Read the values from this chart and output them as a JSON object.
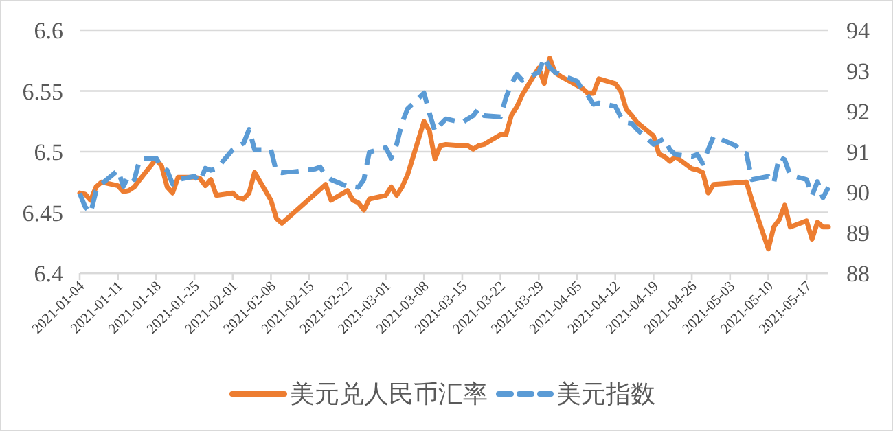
{
  "chart_data": {
    "type": "line",
    "xlim": [
      "2021-01-04",
      "2021-05-21"
    ],
    "xticks": [
      "2021-01-04",
      "2021-01-11",
      "2021-01-18",
      "2021-01-25",
      "2021-02-01",
      "2021-02-08",
      "2021-02-15",
      "2021-02-22",
      "2021-03-01",
      "2021-03-08",
      "2021-03-15",
      "2021-03-22",
      "2021-03-29",
      "2021-04-05",
      "2021-04-12",
      "2021-04-19",
      "2021-04-26",
      "2021-05-03",
      "2021-05-10",
      "2021-05-17"
    ],
    "ylim": [
      6.4,
      6.6
    ],
    "yticks": [
      6.4,
      6.45,
      6.5,
      6.55,
      6.6
    ],
    "y2lim": [
      88,
      94
    ],
    "y2ticks": [
      88,
      89,
      90,
      91,
      92,
      93,
      94
    ],
    "grid": "y",
    "legend": "bottom",
    "series": [
      {
        "name": "美元兑人民币汇率",
        "color": "#ed7d31",
        "line_style": "solid",
        "x": [
          "2021-01-04",
          "2021-01-05",
          "2021-01-06",
          "2021-01-07",
          "2021-01-08",
          "2021-01-11",
          "2021-01-12",
          "2021-01-13",
          "2021-01-14",
          "2021-01-15",
          "2021-01-18",
          "2021-01-19",
          "2021-01-20",
          "2021-01-21",
          "2021-01-22",
          "2021-01-25",
          "2021-01-26",
          "2021-01-27",
          "2021-01-28",
          "2021-01-29",
          "2021-02-01",
          "2021-02-02",
          "2021-02-03",
          "2021-02-04",
          "2021-02-05",
          "2021-02-08",
          "2021-02-09",
          "2021-02-10",
          "2021-02-18",
          "2021-02-19",
          "2021-02-22",
          "2021-02-23",
          "2021-02-24",
          "2021-02-25",
          "2021-02-26",
          "2021-03-01",
          "2021-03-02",
          "2021-03-03",
          "2021-03-04",
          "2021-03-05",
          "2021-03-08",
          "2021-03-09",
          "2021-03-10",
          "2021-03-11",
          "2021-03-12",
          "2021-03-15",
          "2021-03-16",
          "2021-03-17",
          "2021-03-18",
          "2021-03-19",
          "2021-03-22",
          "2021-03-23",
          "2021-03-24",
          "2021-03-25",
          "2021-03-26",
          "2021-03-29",
          "2021-03-30",
          "2021-03-31",
          "2021-04-01",
          "2021-04-02",
          "2021-04-06",
          "2021-04-07",
          "2021-04-08",
          "2021-04-09",
          "2021-04-12",
          "2021-04-13",
          "2021-04-14",
          "2021-04-15",
          "2021-04-16",
          "2021-04-19",
          "2021-04-20",
          "2021-04-21",
          "2021-04-22",
          "2021-04-23",
          "2021-04-26",
          "2021-04-27",
          "2021-04-28",
          "2021-04-29",
          "2021-04-30",
          "2021-05-06",
          "2021-05-07",
          "2021-05-10",
          "2021-05-11",
          "2021-05-12",
          "2021-05-13",
          "2021-05-14",
          "2021-05-17",
          "2021-05-18",
          "2021-05-19",
          "2021-05-20",
          "2021-05-21"
        ],
        "values": [
          6.466,
          6.465,
          6.46,
          6.471,
          6.475,
          6.472,
          6.467,
          6.468,
          6.471,
          6.477,
          6.494,
          6.488,
          6.471,
          6.466,
          6.479,
          6.479,
          6.478,
          6.472,
          6.477,
          6.464,
          6.466,
          6.462,
          6.461,
          6.466,
          6.483,
          6.46,
          6.445,
          6.441,
          6.473,
          6.46,
          6.468,
          6.46,
          6.458,
          6.452,
          6.461,
          6.464,
          6.471,
          6.464,
          6.471,
          6.481,
          6.525,
          6.517,
          6.494,
          6.505,
          6.506,
          6.505,
          6.505,
          6.502,
          6.505,
          6.506,
          6.514,
          6.514,
          6.53,
          6.537,
          6.547,
          6.569,
          6.556,
          6.577,
          6.565,
          6.562,
          6.552,
          6.548,
          6.548,
          6.56,
          6.556,
          6.55,
          6.535,
          6.53,
          6.524,
          6.513,
          6.498,
          6.496,
          6.492,
          6.496,
          6.486,
          6.485,
          6.483,
          6.466,
          6.473,
          6.475,
          6.46,
          6.42,
          6.438,
          6.444,
          6.456,
          6.438,
          6.443,
          6.428,
          6.442,
          6.438,
          6.438
        ]
      },
      {
        "name": "美元指数",
        "color": "#5b9bd5",
        "axis": "y2",
        "line_style": "dashed",
        "x": [
          "2021-01-04",
          "2021-01-05",
          "2021-01-06",
          "2021-01-07",
          "2021-01-08",
          "2021-01-11",
          "2021-01-12",
          "2021-01-13",
          "2021-01-14",
          "2021-01-15",
          "2021-01-18",
          "2021-01-19",
          "2021-01-20",
          "2021-01-21",
          "2021-01-22",
          "2021-01-25",
          "2021-01-26",
          "2021-01-27",
          "2021-01-28",
          "2021-01-29",
          "2021-02-01",
          "2021-02-02",
          "2021-02-03",
          "2021-02-04",
          "2021-02-05",
          "2021-02-08",
          "2021-02-09",
          "2021-02-10",
          "2021-02-11",
          "2021-02-12",
          "2021-02-16",
          "2021-02-17",
          "2021-02-18",
          "2021-02-19",
          "2021-02-22",
          "2021-02-23",
          "2021-02-24",
          "2021-02-25",
          "2021-02-26",
          "2021-03-01",
          "2021-03-02",
          "2021-03-03",
          "2021-03-04",
          "2021-03-05",
          "2021-03-08",
          "2021-03-09",
          "2021-03-10",
          "2021-03-11",
          "2021-03-12",
          "2021-03-15",
          "2021-03-16",
          "2021-03-17",
          "2021-03-18",
          "2021-03-19",
          "2021-03-22",
          "2021-03-23",
          "2021-03-24",
          "2021-03-25",
          "2021-03-26",
          "2021-03-29",
          "2021-03-30",
          "2021-03-31",
          "2021-04-01",
          "2021-04-02",
          "2021-04-05",
          "2021-04-06",
          "2021-04-07",
          "2021-04-08",
          "2021-04-09",
          "2021-04-12",
          "2021-04-13",
          "2021-04-14",
          "2021-04-15",
          "2021-04-16",
          "2021-04-19",
          "2021-04-20",
          "2021-04-21",
          "2021-04-22",
          "2021-04-23",
          "2021-04-26",
          "2021-04-27",
          "2021-04-28",
          "2021-04-29",
          "2021-04-30",
          "2021-05-03",
          "2021-05-04",
          "2021-05-05",
          "2021-05-06",
          "2021-05-07",
          "2021-05-10",
          "2021-05-11",
          "2021-05-12",
          "2021-05-13",
          "2021-05-14",
          "2021-05-17",
          "2021-05-18",
          "2021-05-19",
          "2021-05-20",
          "2021-05-21"
        ],
        "values": [
          89.97,
          89.64,
          89.49,
          90.03,
          90.2,
          90.54,
          90.14,
          90.42,
          90.31,
          90.82,
          90.84,
          90.59,
          90.54,
          90.2,
          90.31,
          90.39,
          90.26,
          90.59,
          90.54,
          90.57,
          91.05,
          91.14,
          91.21,
          91.55,
          91.05,
          91.05,
          90.5,
          90.48,
          90.5,
          90.5,
          90.57,
          90.62,
          90.42,
          90.31,
          90.14,
          90.14,
          90.12,
          90.31,
          90.99,
          91.1,
          90.84,
          91.18,
          91.72,
          92.06,
          92.45,
          91.95,
          91.5,
          91.67,
          91.81,
          91.72,
          91.81,
          91.89,
          92.06,
          91.89,
          91.86,
          92.34,
          92.68,
          92.91,
          92.76,
          92.96,
          93.32,
          93.08,
          92.96,
          92.9,
          92.74,
          92.53,
          92.38,
          92.17,
          92.2,
          92.12,
          91.86,
          91.72,
          91.7,
          91.55,
          91.18,
          91.25,
          91.33,
          91.05,
          90.93,
          90.88,
          90.93,
          90.71,
          91.05,
          91.38,
          91.21,
          91.15,
          90.99,
          90.95,
          90.31,
          90.39,
          90.23,
          90.88,
          90.8,
          90.42,
          90.31,
          89.92,
          90.26,
          89.86,
          90.12
        ]
      }
    ]
  }
}
